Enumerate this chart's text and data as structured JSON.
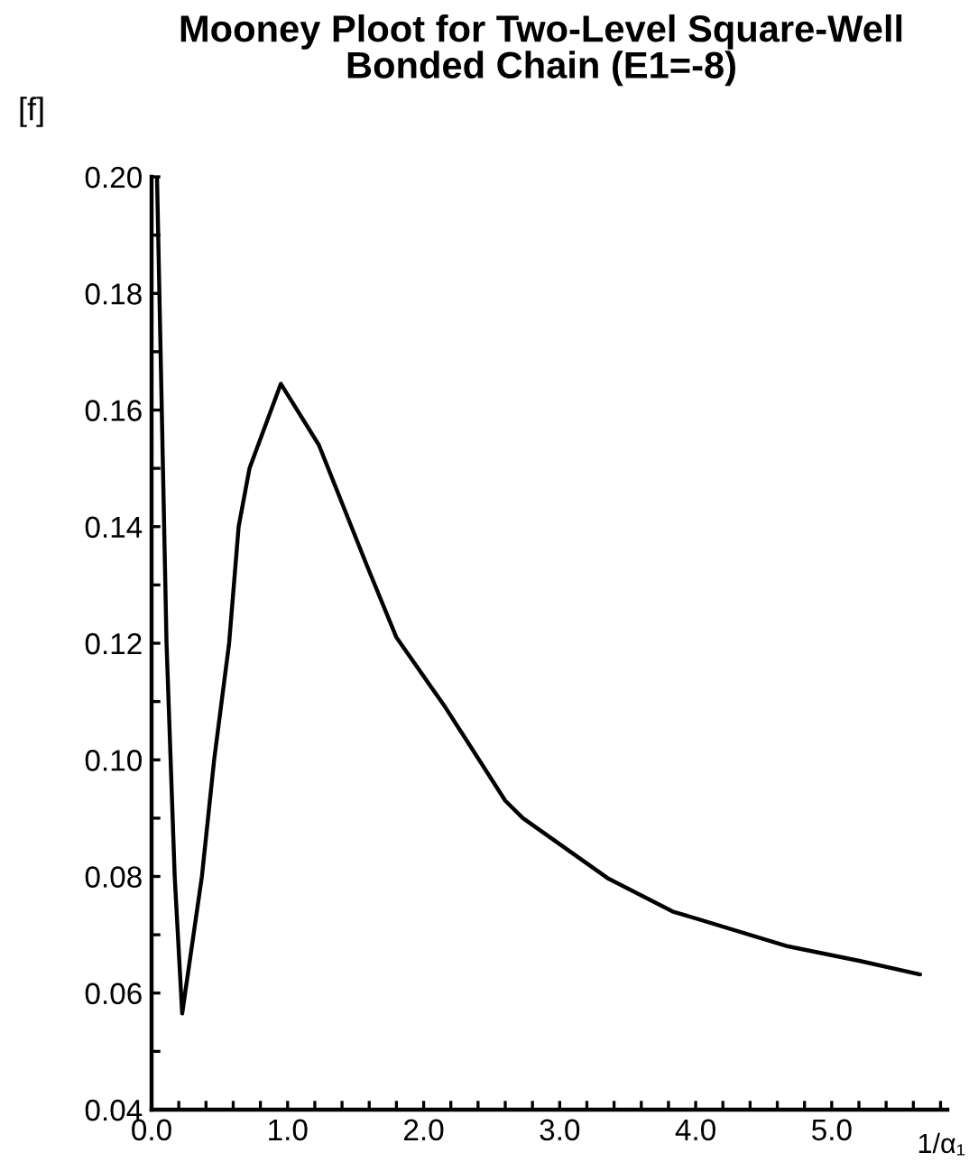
{
  "chart_data": {
    "type": "line",
    "title": "Mooney Ploot for Two-Level Square-Well\nBonded Chain (E1=-8)",
    "ylabel": "[f]",
    "xlabel": "1/α₁",
    "x": [
      0.04,
      0.11,
      0.17,
      0.225,
      0.37,
      0.46,
      0.57,
      0.64,
      0.72,
      0.95,
      1.23,
      1.58,
      1.8,
      2.16,
      2.6,
      2.73,
      3.36,
      3.83,
      4.68,
      5.21,
      5.65
    ],
    "values": [
      0.2,
      0.12,
      0.08,
      0.0565,
      0.08,
      0.1,
      0.12,
      0.14,
      0.15,
      0.1645,
      0.154,
      0.1335,
      0.121,
      0.109,
      0.093,
      0.09,
      0.0796,
      0.074,
      0.068,
      0.0655,
      0.0632
    ],
    "color": "#000000",
    "marker": "none",
    "line_style": "solid",
    "grid": false,
    "legend": false,
    "xlim": [
      0,
      5.85
    ],
    "ylim": [
      0.04,
      0.2
    ],
    "xticks": [
      {
        "value": 0,
        "label": "0.0"
      },
      {
        "value": 0.2,
        "label": null
      },
      {
        "value": 0.4,
        "label": null
      },
      {
        "value": 0.6,
        "label": null
      },
      {
        "value": 0.8,
        "label": null
      },
      {
        "value": 1,
        "label": "1.0"
      },
      {
        "value": 1.2,
        "label": null
      },
      {
        "value": 1.4,
        "label": null
      },
      {
        "value": 1.6,
        "label": null
      },
      {
        "value": 1.8,
        "label": null
      },
      {
        "value": 2,
        "label": "2.0"
      },
      {
        "value": 2.2,
        "label": null
      },
      {
        "value": 2.4,
        "label": null
      },
      {
        "value": 2.6,
        "label": null
      },
      {
        "value": 2.8,
        "label": null
      },
      {
        "value": 3,
        "label": "3.0"
      },
      {
        "value": 3.2,
        "label": null
      },
      {
        "value": 3.4,
        "label": null
      },
      {
        "value": 3.6,
        "label": null
      },
      {
        "value": 3.8,
        "label": null
      },
      {
        "value": 4,
        "label": "4.0"
      },
      {
        "value": 4.2,
        "label": null
      },
      {
        "value": 4.4,
        "label": null
      },
      {
        "value": 4.6,
        "label": null
      },
      {
        "value": 4.8,
        "label": null
      },
      {
        "value": 5,
        "label": "5.0"
      },
      {
        "value": 5.2,
        "label": null
      },
      {
        "value": 5.4,
        "label": null
      },
      {
        "value": 5.6,
        "label": null
      },
      {
        "value": 5.8,
        "label": null
      }
    ],
    "yticks": [
      {
        "value": 0.04,
        "label": "0.04"
      },
      {
        "value": 0.05,
        "label": null
      },
      {
        "value": 0.06,
        "label": "0.06"
      },
      {
        "value": 0.07,
        "label": null
      },
      {
        "value": 0.08,
        "label": "0.08"
      },
      {
        "value": 0.09,
        "label": null
      },
      {
        "value": 0.1,
        "label": "0.10"
      },
      {
        "value": 0.11,
        "label": null
      },
      {
        "value": 0.12,
        "label": "0.12"
      },
      {
        "value": 0.13,
        "label": null
      },
      {
        "value": 0.14,
        "label": "0.14"
      },
      {
        "value": 0.15,
        "label": null
      },
      {
        "value": 0.16,
        "label": "0.16"
      },
      {
        "value": 0.17,
        "label": null
      },
      {
        "value": 0.18,
        "label": "0.18"
      },
      {
        "value": 0.19,
        "label": null
      },
      {
        "value": 0.2,
        "label": "0.20"
      }
    ]
  }
}
